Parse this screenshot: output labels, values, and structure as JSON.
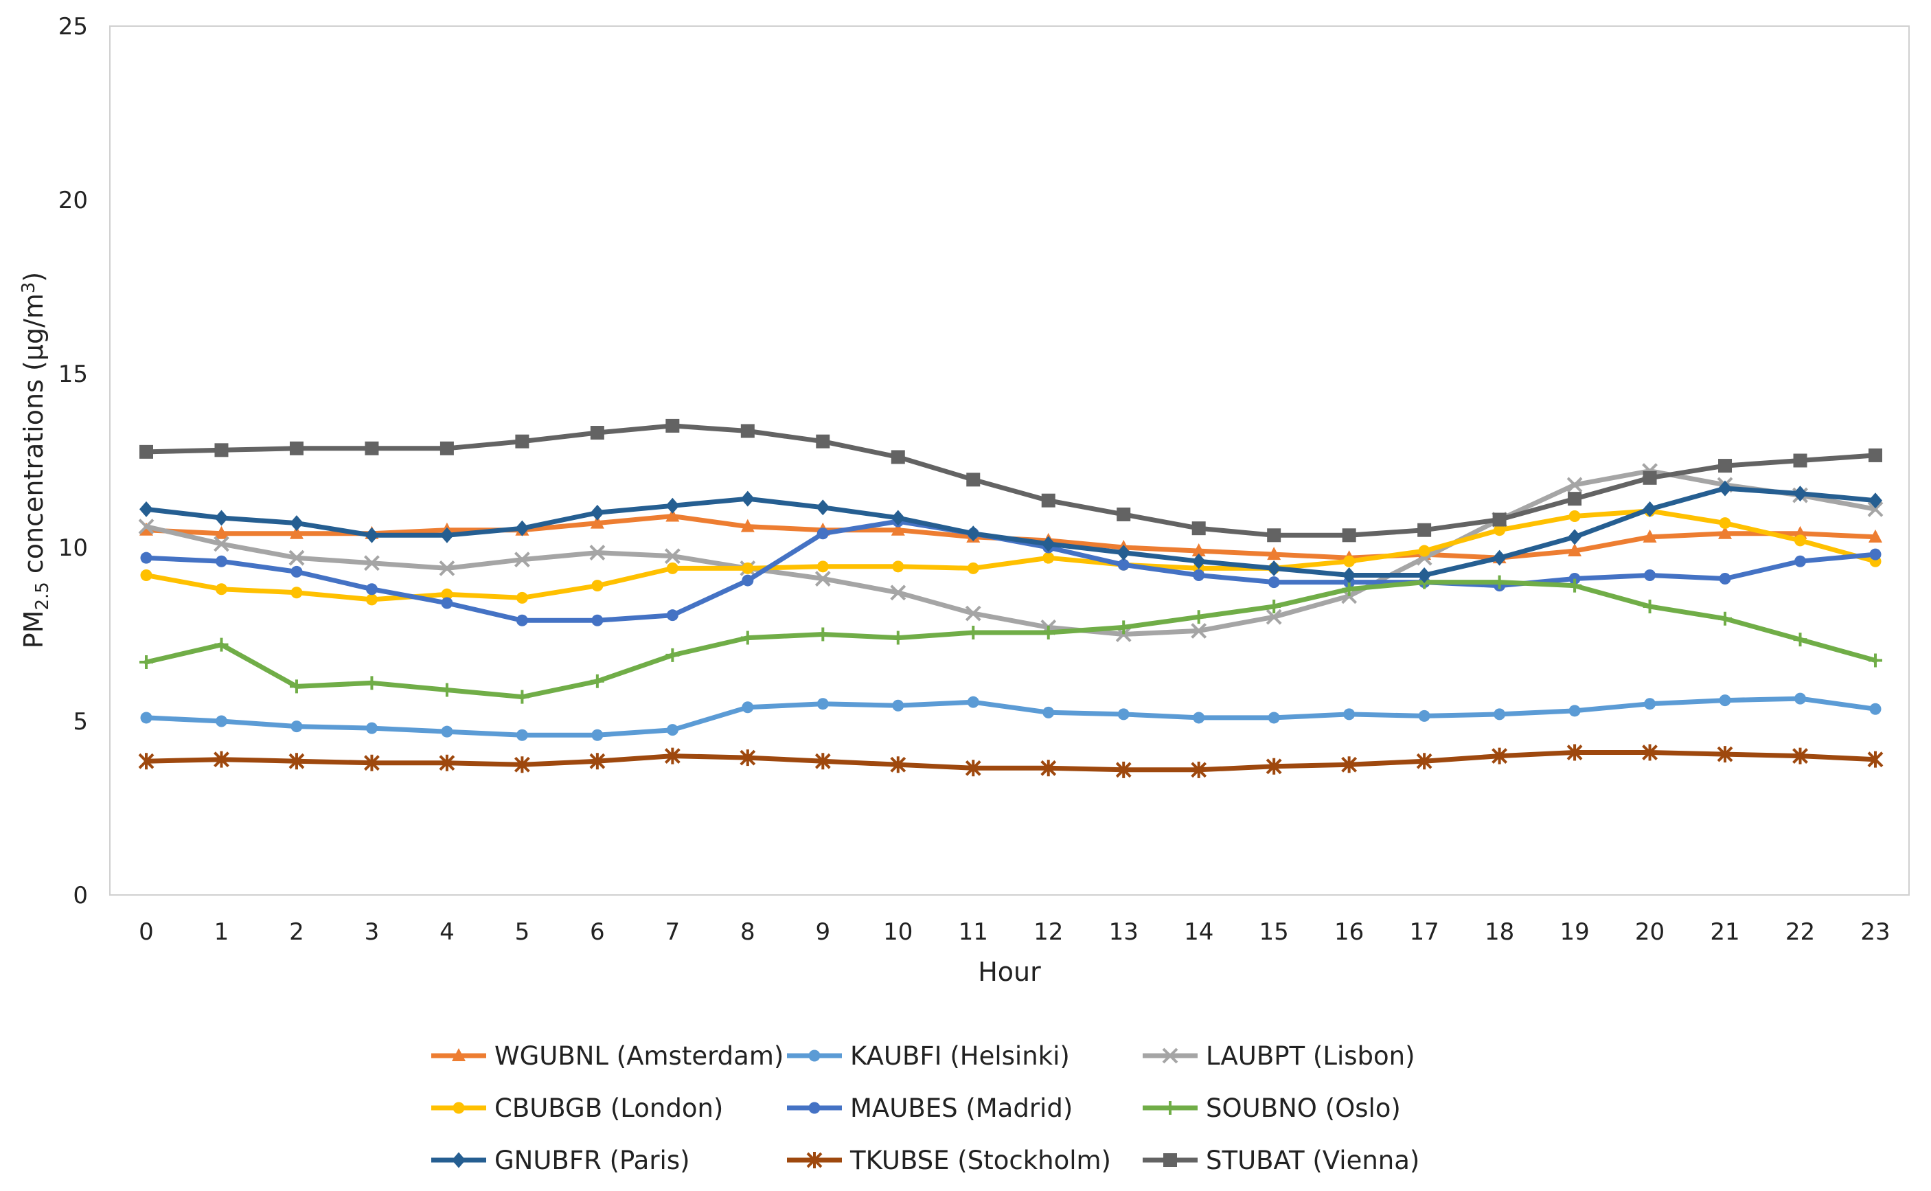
{
  "chart_data": {
    "type": "line",
    "title": "",
    "xlabel": "Hour",
    "ylabel_parts": {
      "prefix": "PM",
      "subscript": "2.5",
      "middle": " concentrations (μg/m",
      "superscript": "3",
      "suffix": ")"
    },
    "ylim": [
      0,
      25
    ],
    "yticks": [
      "0",
      "5",
      "10",
      "15",
      "20",
      "25"
    ],
    "categories": [
      "0",
      "1",
      "2",
      "3",
      "4",
      "5",
      "6",
      "7",
      "8",
      "9",
      "10",
      "11",
      "12",
      "13",
      "14",
      "15",
      "16",
      "17",
      "18",
      "19",
      "20",
      "21",
      "22",
      "23"
    ],
    "legend_position": "bottom",
    "series": [
      {
        "name": "WGUBNL (Amsterdam)",
        "color": "#ED7D31",
        "marker": "triangle",
        "values": [
          10.5,
          10.4,
          10.4,
          10.4,
          10.5,
          10.5,
          10.7,
          10.9,
          10.6,
          10.5,
          10.5,
          10.3,
          10.2,
          10.0,
          9.9,
          9.8,
          9.7,
          9.8,
          9.7,
          9.9,
          10.3,
          10.4,
          10.4,
          10.3
        ]
      },
      {
        "name": "KAUBFI (Helsinki)",
        "color": "#5B9BD5",
        "marker": "circle",
        "values": [
          5.1,
          5.0,
          4.85,
          4.8,
          4.7,
          4.6,
          4.6,
          4.75,
          5.4,
          5.5,
          5.45,
          5.55,
          5.25,
          5.2,
          5.1,
          5.1,
          5.2,
          5.15,
          5.2,
          5.3,
          5.5,
          5.6,
          5.65,
          5.35
        ]
      },
      {
        "name": "LAUBPT (Lisbon)",
        "color": "#A5A5A5",
        "marker": "x",
        "values": [
          10.6,
          10.1,
          9.7,
          9.55,
          9.4,
          9.65,
          9.85,
          9.75,
          9.4,
          9.1,
          8.7,
          8.1,
          7.7,
          7.5,
          7.6,
          8.0,
          8.6,
          9.7,
          10.8,
          11.8,
          12.2,
          11.8,
          11.5,
          11.1
        ]
      },
      {
        "name": "CBUBGB (London)",
        "color": "#FFC000",
        "marker": "circle",
        "values": [
          9.2,
          8.8,
          8.7,
          8.5,
          8.65,
          8.55,
          8.9,
          9.4,
          9.4,
          9.45,
          9.45,
          9.4,
          9.7,
          9.5,
          9.4,
          9.4,
          9.6,
          9.9,
          10.5,
          10.9,
          11.05,
          10.7,
          10.2,
          9.6
        ]
      },
      {
        "name": "MAUBES (Madrid)",
        "color": "#4472C4",
        "marker": "circle",
        "values": [
          9.7,
          9.6,
          9.3,
          8.8,
          8.4,
          7.9,
          7.9,
          8.05,
          9.05,
          10.4,
          10.75,
          10.4,
          10.0,
          9.5,
          9.2,
          9.0,
          9.0,
          9.0,
          8.9,
          9.1,
          9.2,
          9.1,
          9.6,
          9.8
        ]
      },
      {
        "name": "SOUBNO (Oslo)",
        "color": "#70AD47",
        "marker": "plus",
        "values": [
          6.7,
          7.2,
          6.0,
          6.1,
          5.9,
          5.7,
          6.15,
          6.9,
          7.4,
          7.5,
          7.4,
          7.55,
          7.55,
          7.7,
          8.0,
          8.3,
          8.8,
          9.0,
          9.0,
          8.9,
          8.3,
          7.95,
          7.35,
          6.75
        ]
      },
      {
        "name": "GNUBFR (Paris)",
        "color": "#255E91",
        "marker": "diamond",
        "values": [
          11.1,
          10.85,
          10.7,
          10.35,
          10.35,
          10.55,
          11.0,
          11.2,
          11.4,
          11.15,
          10.85,
          10.4,
          10.1,
          9.85,
          9.6,
          9.4,
          9.2,
          9.2,
          9.7,
          10.3,
          11.1,
          11.7,
          11.55,
          11.35
        ]
      },
      {
        "name": "TKUBSE (Stockholm)",
        "color": "#9E480E",
        "marker": "star",
        "values": [
          3.85,
          3.9,
          3.85,
          3.8,
          3.8,
          3.75,
          3.85,
          4.0,
          3.95,
          3.85,
          3.75,
          3.65,
          3.65,
          3.6,
          3.6,
          3.7,
          3.75,
          3.85,
          4.0,
          4.1,
          4.1,
          4.05,
          4.0,
          3.9
        ]
      },
      {
        "name": "STUBAT (Vienna)",
        "color": "#636363",
        "marker": "square",
        "values": [
          12.75,
          12.8,
          12.85,
          12.85,
          12.85,
          13.05,
          13.3,
          13.5,
          13.35,
          13.05,
          12.6,
          11.95,
          11.35,
          10.95,
          10.55,
          10.35,
          10.35,
          10.5,
          10.8,
          11.4,
          12.0,
          12.35,
          12.5,
          12.65
        ]
      }
    ]
  }
}
